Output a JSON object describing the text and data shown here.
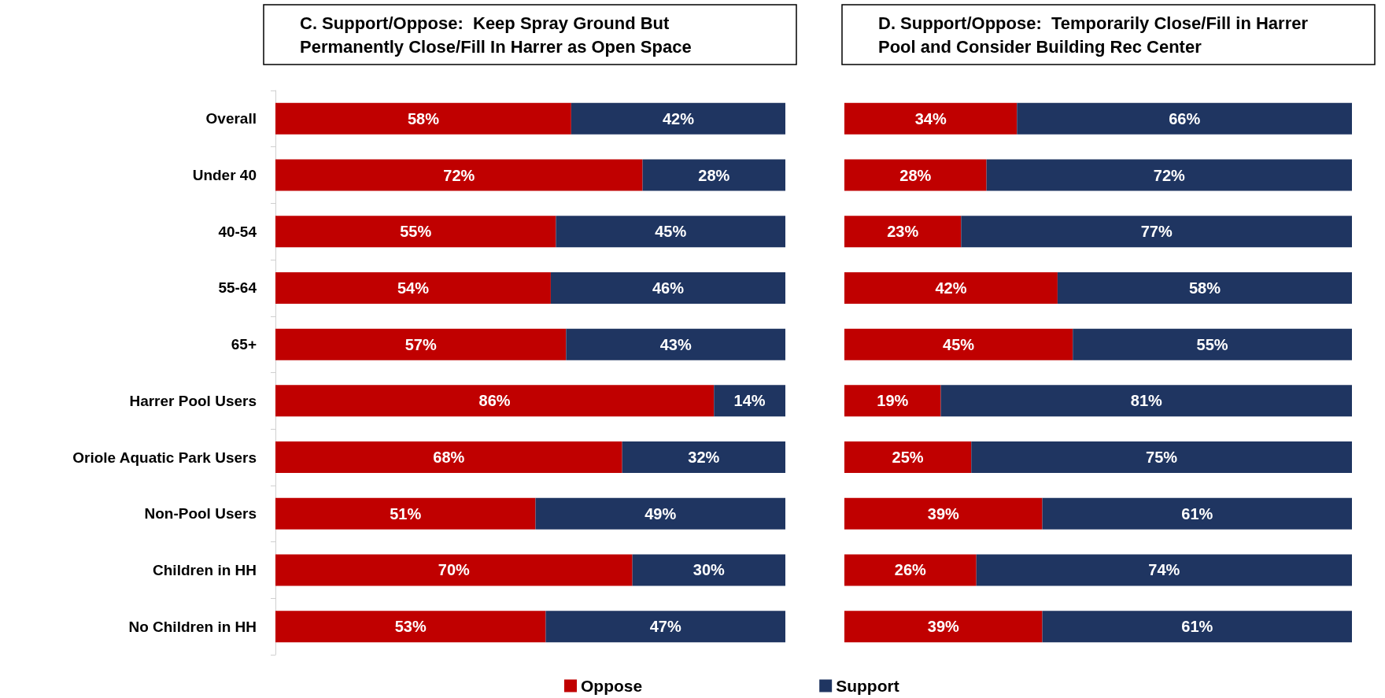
{
  "chart_data": [
    {
      "type": "bar",
      "orientation": "horizontal",
      "stacked": true,
      "title": "C. Support/Oppose:  Keep Spray Ground But Permanently Close/Fill In Harrer as Open Space",
      "categories": [
        "Overall",
        "Under 40",
        "40-54",
        "55-64",
        "65+",
        "Harrer Pool Users",
        "Oriole Aquatic Park Users",
        "Non-Pool Users",
        "Children in HH",
        "No Children in HH"
      ],
      "xlim": [
        0,
        100
      ],
      "tick_labels": "y",
      "legend": "bottom",
      "series": [
        {
          "name": "Oppose",
          "color": "#c00000",
          "values": [
            58,
            72,
            55,
            54,
            57,
            86,
            68,
            51,
            70,
            53
          ],
          "value_labels": [
            "58%",
            "72%",
            "55%",
            "54%",
            "57%",
            "86%",
            "68%",
            "51%",
            "70%",
            "53%"
          ]
        },
        {
          "name": "Support",
          "color": "#1f3561",
          "values": [
            42,
            28,
            45,
            46,
            43,
            14,
            32,
            49,
            30,
            47
          ],
          "value_labels": [
            "42%",
            "28%",
            "45%",
            "46%",
            "43%",
            "14%",
            "32%",
            "49%",
            "30%",
            "47%"
          ]
        }
      ]
    },
    {
      "type": "bar",
      "orientation": "horizontal",
      "stacked": true,
      "title": "D. Support/Oppose:  Temporarily Close/Fill in Harrer Pool and Consider Building Rec Center",
      "categories": [
        null,
        null,
        null,
        null,
        null,
        null,
        null,
        null,
        null,
        null
      ],
      "xlim": [
        0,
        100
      ],
      "tick_labels": false,
      "series": [
        {
          "color": "#c00000",
          "values": [
            34,
            28,
            23,
            42,
            45,
            19,
            25,
            39,
            26,
            39
          ],
          "value_labels": [
            "34%",
            "28%",
            "23%",
            "42%",
            "45%",
            "19%",
            "25%",
            "39%",
            "26%",
            "39%"
          ]
        },
        {
          "color": "#1f3561",
          "values": [
            66,
            72,
            77,
            58,
            55,
            81,
            75,
            61,
            74,
            61
          ],
          "value_labels": [
            "66%",
            "72%",
            "77%",
            "58%",
            "55%",
            "81%",
            "75%",
            "61%",
            "74%",
            "61%"
          ]
        }
      ]
    }
  ]
}
